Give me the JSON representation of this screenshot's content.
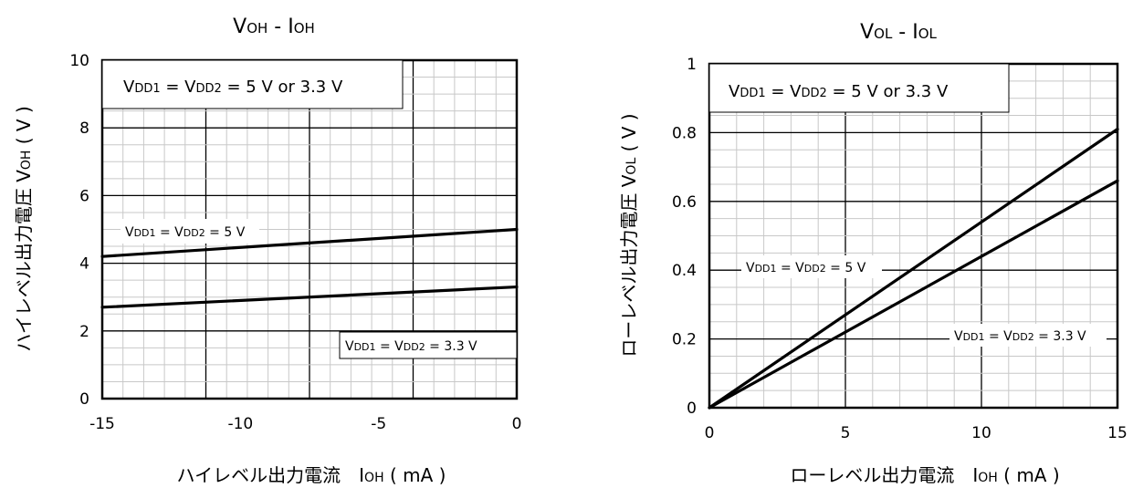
{
  "chart_data": [
    {
      "type": "line",
      "title": "VOH - IOH",
      "xlabel": "ハイレベル出力電流　IOH ( mA )",
      "ylabel": "ハイレベル出力電圧 VOH ( V )",
      "xlim": [
        -15,
        0
      ],
      "ylim": [
        0,
        10
      ],
      "xticks": [
        "-15",
        "-10",
        "-5",
        "0"
      ],
      "yticks": [
        "0",
        "2",
        "4",
        "6",
        "8",
        "10"
      ],
      "grid": true,
      "note": "VDD1 = VDD2 = 5 V or 3.3 V",
      "series": [
        {
          "name": "VDD1 = VDD2 = 5 V",
          "x": [
            -15,
            0
          ],
          "y": [
            4.2,
            5.0
          ]
        },
        {
          "name": "VDD1 = VDD2 = 3.3 V",
          "x": [
            -15,
            0
          ],
          "y": [
            2.7,
            3.3
          ]
        }
      ]
    },
    {
      "type": "line",
      "title": "VOL - IOL",
      "xlabel": "ローレベル出力電流　IOH ( mA )",
      "ylabel": "ローレベル出力電圧 VOL ( V )",
      "xlim": [
        0,
        15
      ],
      "ylim": [
        0,
        1
      ],
      "xticks": [
        "0",
        "5",
        "10",
        "15"
      ],
      "yticks": [
        "0",
        "0.2",
        "0.4",
        "0.6",
        "0.8",
        "1"
      ],
      "grid": true,
      "note": "VDD1 = VDD2 = 5 V or 3.3 V",
      "series": [
        {
          "name": "VDD1 = VDD2 = 5 V",
          "x": [
            0,
            15
          ],
          "y": [
            0,
            0.81
          ]
        },
        {
          "name": "VDD1 = VDD2 = 3.3 V",
          "x": [
            0,
            15
          ],
          "y": [
            0,
            0.66
          ]
        }
      ]
    }
  ]
}
